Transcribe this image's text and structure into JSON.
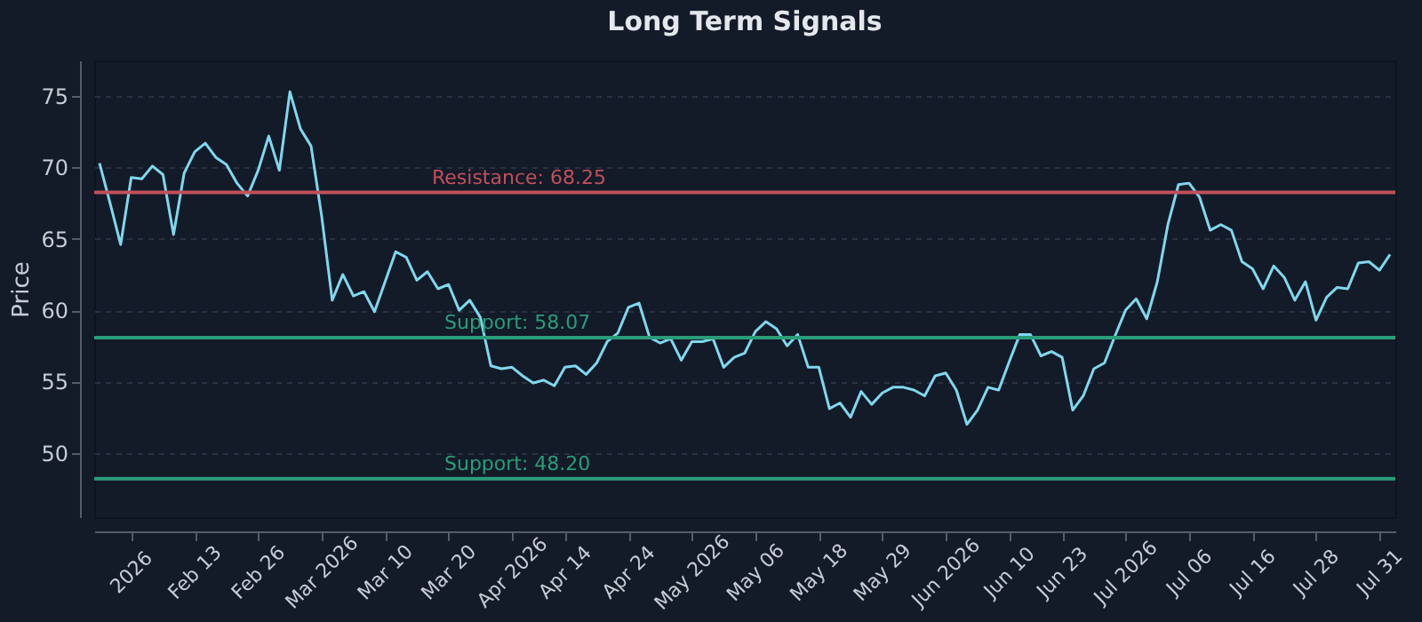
{
  "chart_data": {
    "type": "line",
    "title": "Long Term Signals",
    "ylabel": "Price",
    "categories": [
      null,
      null,
      null,
      "2026",
      null,
      null,
      null,
      null,
      null,
      "Feb 13",
      null,
      null,
      null,
      null,
      null,
      "Feb 26",
      null,
      null,
      null,
      null,
      null,
      "Mar 2026",
      null,
      null,
      null,
      null,
      null,
      "Mar 10",
      null,
      null,
      null,
      null,
      null,
      "Mar 20",
      null,
      null,
      null,
      null,
      null,
      "Apr 2026",
      null,
      null,
      null,
      null,
      "Apr 14",
      null,
      null,
      null,
      null,
      null,
      "Apr 24",
      null,
      null,
      null,
      null,
      null,
      "May 2026",
      null,
      null,
      null,
      null,
      null,
      "May 06",
      null,
      null,
      null,
      null,
      null,
      "May 18",
      null,
      null,
      null,
      null,
      null,
      "May 29",
      null,
      null,
      null,
      null,
      null,
      "Jun 2026",
      null,
      null,
      null,
      null,
      null,
      "Jun 10",
      null,
      null,
      null,
      null,
      "Jun 23",
      null,
      null,
      null,
      null,
      null,
      "Jul 2026",
      null,
      null,
      null,
      null,
      null,
      "Jul 06",
      null,
      null,
      null,
      null,
      null,
      "Jul 16",
      null,
      null,
      null,
      null,
      null,
      "Jul 28",
      null,
      null,
      null,
      null,
      null,
      "Jul 31",
      null
    ],
    "series": [
      {
        "color": "#7fd8ee",
        "values": [
          70.3,
          67.5,
          64.6,
          69.3,
          69.2,
          70.1,
          69.5,
          65.3,
          69.6,
          71.1,
          71.7,
          70.7,
          70.2,
          68.9,
          68.0,
          69.8,
          72.2,
          69.8,
          75.3,
          72.7,
          71.5,
          66.6,
          60.7,
          62.5,
          61.0,
          61.3,
          59.9,
          62.0,
          64.1,
          63.7,
          62.1,
          62.7,
          61.5,
          61.8,
          60.0,
          60.7,
          59.5,
          56.1,
          55.9,
          56.0,
          55.4,
          54.9,
          55.1,
          54.7,
          56.0,
          56.1,
          55.5,
          56.3,
          57.8,
          58.4,
          60.2,
          60.5,
          58.1,
          57.7,
          58.0,
          56.5,
          57.8,
          57.8,
          58.0,
          56.0,
          56.7,
          57.0,
          58.5,
          59.2,
          58.7,
          57.5,
          58.3,
          56.0,
          56.0,
          53.1,
          53.5,
          52.5,
          54.3,
          53.4,
          54.2,
          54.6,
          54.6,
          54.4,
          54.0,
          55.4,
          55.6,
          54.4,
          52.0,
          53.0,
          54.6,
          54.4,
          56.4,
          58.3,
          58.3,
          56.8,
          57.1,
          56.7,
          53.0,
          54.0,
          55.9,
          56.3,
          58.2,
          60.0,
          60.8,
          59.4,
          62.0,
          66.0,
          68.8,
          68.9,
          67.9,
          65.6,
          66.0,
          65.6,
          63.4,
          62.9,
          61.5,
          63.1,
          62.3,
          60.7,
          62.0,
          59.3,
          60.9,
          61.6,
          61.5,
          63.3,
          63.4,
          62.8,
          63.9
        ]
      }
    ],
    "ylim": [
      45.5,
      77.5
    ],
    "yticks": [
      50,
      55,
      60,
      65,
      70,
      75
    ],
    "grid": "y",
    "ref_lines": [
      {
        "axis": "y",
        "value": 68.25,
        "label": "Resistance: 68.25",
        "color": "#c0505a"
      },
      {
        "axis": "y",
        "value": 58.07,
        "label": "Support: 58.07",
        "color": "#2a9d78"
      },
      {
        "axis": "y",
        "value": 48.2,
        "label": "Support: 48.20",
        "color": "#2a9d78"
      }
    ]
  }
}
